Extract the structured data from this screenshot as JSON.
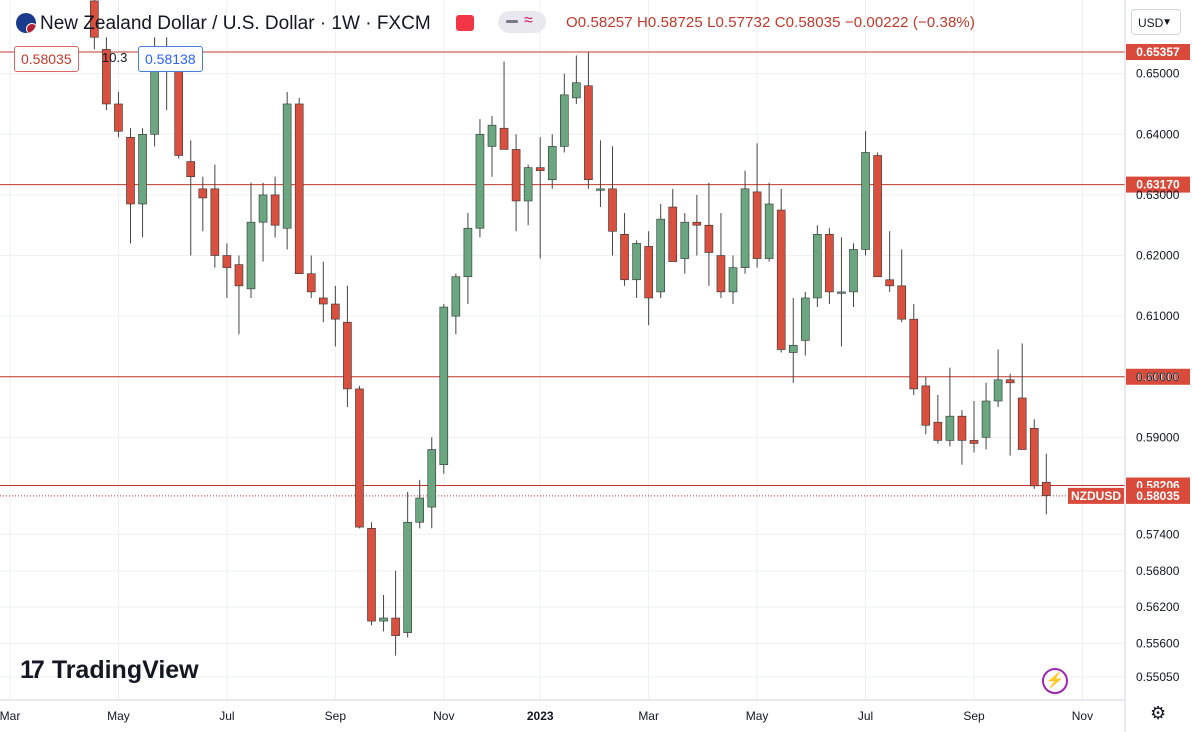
{
  "header": {
    "title": "New Zealand Dollar / U.S. Dollar · 1W · FXCM",
    "ohlc": "O0.58257 H0.58725 L0.57732 C0.58035 −0.00222 (−0.38%)",
    "sell_price": "0.58035",
    "spread": "10.3",
    "buy_price": "0.58138",
    "currency": "USD",
    "logo_text": "TradingView",
    "logo_mark": "17"
  },
  "colors": {
    "up": "#6aa680",
    "down": "#d9503e",
    "wick": "#444444",
    "hline": "#c0392b",
    "grid": "#eef0f3",
    "label_bg": "#d94a3a"
  },
  "icons": [
    "nz-flag-icon",
    "camera-icon",
    "compare-icon",
    "currency-chevron-icon",
    "lightning-icon",
    "settings-gear-icon",
    "tradingview-logo-icon"
  ],
  "chart_data": {
    "type": "candlestick",
    "symbol": "NZDUSD",
    "last_price": 0.58035,
    "ylim": [
      0.548,
      0.6605
    ],
    "y_ticks": [
      "0.65000",
      "0.64000",
      "0.63000",
      "0.62000",
      "0.61000",
      "0.60000",
      "0.59000",
      "0.57400",
      "0.56800",
      "0.56200",
      "0.55600",
      "0.55050"
    ],
    "x_ticks": [
      {
        "label": "Mar",
        "week": 0
      },
      {
        "label": "May",
        "week": 9
      },
      {
        "label": "Jul",
        "week": 18
      },
      {
        "label": "Sep",
        "week": 27
      },
      {
        "label": "Nov",
        "week": 36
      },
      {
        "label": "2023",
        "week": 44
      },
      {
        "label": "Mar",
        "week": 53
      },
      {
        "label": "May",
        "week": 62
      },
      {
        "label": "Jul",
        "week": 71
      },
      {
        "label": "Sep",
        "week": 80
      },
      {
        "label": "Nov",
        "week": 89
      }
    ],
    "horizontal_levels": [
      {
        "value": 0.65357,
        "label": "0.65357"
      },
      {
        "value": 0.6317,
        "label": "0.63170"
      },
      {
        "value": 0.6,
        "label": "0.60000"
      },
      {
        "value": 0.58206,
        "label": "0.58206"
      }
    ],
    "price_label": {
      "symbol": "NZDUSD",
      "value": "0.58035"
    },
    "candles": [
      {
        "week": 7,
        "o": 0.662,
        "h": 0.664,
        "l": 0.654,
        "c": 0.656
      },
      {
        "week": 8,
        "o": 0.654,
        "h": 0.656,
        "l": 0.644,
        "c": 0.645
      },
      {
        "week": 9,
        "o": 0.645,
        "h": 0.647,
        "l": 0.6395,
        "c": 0.6405
      },
      {
        "week": 10,
        "o": 0.6395,
        "h": 0.641,
        "l": 0.622,
        "c": 0.6285
      },
      {
        "week": 11,
        "o": 0.6285,
        "h": 0.641,
        "l": 0.623,
        "c": 0.64
      },
      {
        "week": 12,
        "o": 0.64,
        "h": 0.656,
        "l": 0.638,
        "c": 0.654
      },
      {
        "week": 13,
        "o": 0.654,
        "h": 0.656,
        "l": 0.644,
        "c": 0.652
      },
      {
        "week": 14,
        "o": 0.6515,
        "h": 0.652,
        "l": 0.636,
        "c": 0.6365
      },
      {
        "week": 15,
        "o": 0.6355,
        "h": 0.639,
        "l": 0.62,
        "c": 0.633
      },
      {
        "week": 16,
        "o": 0.631,
        "h": 0.633,
        "l": 0.624,
        "c": 0.6295
      },
      {
        "week": 17,
        "o": 0.631,
        "h": 0.635,
        "l": 0.618,
        "c": 0.62
      },
      {
        "week": 18,
        "o": 0.62,
        "h": 0.622,
        "l": 0.613,
        "c": 0.618
      },
      {
        "week": 19,
        "o": 0.6185,
        "h": 0.62,
        "l": 0.607,
        "c": 0.615
      },
      {
        "week": 20,
        "o": 0.6145,
        "h": 0.632,
        "l": 0.613,
        "c": 0.6255
      },
      {
        "week": 21,
        "o": 0.6255,
        "h": 0.632,
        "l": 0.619,
        "c": 0.63
      },
      {
        "week": 22,
        "o": 0.63,
        "h": 0.633,
        "l": 0.623,
        "c": 0.625
      },
      {
        "week": 23,
        "o": 0.6245,
        "h": 0.647,
        "l": 0.621,
        "c": 0.645
      },
      {
        "week": 24,
        "o": 0.645,
        "h": 0.646,
        "l": 0.617,
        "c": 0.617
      },
      {
        "week": 25,
        "o": 0.617,
        "h": 0.62,
        "l": 0.613,
        "c": 0.614
      },
      {
        "week": 26,
        "o": 0.613,
        "h": 0.619,
        "l": 0.609,
        "c": 0.612
      },
      {
        "week": 27,
        "o": 0.612,
        "h": 0.615,
        "l": 0.605,
        "c": 0.6095
      },
      {
        "week": 28,
        "o": 0.609,
        "h": 0.615,
        "l": 0.595,
        "c": 0.598
      },
      {
        "week": 29,
        "o": 0.598,
        "h": 0.5985,
        "l": 0.575,
        "c": 0.5752
      },
      {
        "week": 30,
        "o": 0.575,
        "h": 0.576,
        "l": 0.559,
        "c": 0.5597
      },
      {
        "week": 31,
        "o": 0.5597,
        "h": 0.564,
        "l": 0.558,
        "c": 0.5602
      },
      {
        "week": 32,
        "o": 0.5602,
        "h": 0.568,
        "l": 0.554,
        "c": 0.5573
      },
      {
        "week": 33,
        "o": 0.5578,
        "h": 0.581,
        "l": 0.557,
        "c": 0.576
      },
      {
        "week": 34,
        "o": 0.576,
        "h": 0.583,
        "l": 0.575,
        "c": 0.58
      },
      {
        "week": 35,
        "o": 0.5785,
        "h": 0.59,
        "l": 0.575,
        "c": 0.588
      },
      {
        "week": 36,
        "o": 0.5855,
        "h": 0.612,
        "l": 0.584,
        "c": 0.6115
      },
      {
        "week": 37,
        "o": 0.61,
        "h": 0.617,
        "l": 0.607,
        "c": 0.6165
      },
      {
        "week": 38,
        "o": 0.6165,
        "h": 0.627,
        "l": 0.612,
        "c": 0.6245
      },
      {
        "week": 39,
        "o": 0.6245,
        "h": 0.6425,
        "l": 0.623,
        "c": 0.64
      },
      {
        "week": 40,
        "o": 0.638,
        "h": 0.643,
        "l": 0.633,
        "c": 0.6415
      },
      {
        "week": 41,
        "o": 0.641,
        "h": 0.652,
        "l": 0.638,
        "c": 0.6375
      },
      {
        "week": 42,
        "o": 0.6375,
        "h": 0.64,
        "l": 0.624,
        "c": 0.629
      },
      {
        "week": 43,
        "o": 0.629,
        "h": 0.635,
        "l": 0.625,
        "c": 0.6345
      },
      {
        "week": 44,
        "o": 0.6345,
        "h": 0.6395,
        "l": 0.6195,
        "c": 0.634
      },
      {
        "week": 45,
        "o": 0.6325,
        "h": 0.64,
        "l": 0.631,
        "c": 0.638
      },
      {
        "week": 46,
        "o": 0.638,
        "h": 0.65,
        "l": 0.637,
        "c": 0.6465
      },
      {
        "week": 47,
        "o": 0.646,
        "h": 0.653,
        "l": 0.645,
        "c": 0.6485
      },
      {
        "week": 48,
        "o": 0.648,
        "h": 0.6535,
        "l": 0.631,
        "c": 0.6325
      },
      {
        "week": 49,
        "o": 0.631,
        "h": 0.639,
        "l": 0.628,
        "c": 0.631
      },
      {
        "week": 50,
        "o": 0.631,
        "h": 0.638,
        "l": 0.62,
        "c": 0.624
      },
      {
        "week": 51,
        "o": 0.6235,
        "h": 0.627,
        "l": 0.615,
        "c": 0.616
      },
      {
        "week": 52,
        "o": 0.616,
        "h": 0.6225,
        "l": 0.613,
        "c": 0.622
      },
      {
        "week": 53,
        "o": 0.6215,
        "h": 0.624,
        "l": 0.6085,
        "c": 0.613
      },
      {
        "week": 54,
        "o": 0.614,
        "h": 0.6285,
        "l": 0.613,
        "c": 0.626
      },
      {
        "week": 55,
        "o": 0.628,
        "h": 0.631,
        "l": 0.619,
        "c": 0.619
      },
      {
        "week": 56,
        "o": 0.6195,
        "h": 0.627,
        "l": 0.617,
        "c": 0.6255
      },
      {
        "week": 57,
        "o": 0.6255,
        "h": 0.63,
        "l": 0.62,
        "c": 0.625
      },
      {
        "week": 58,
        "o": 0.625,
        "h": 0.632,
        "l": 0.615,
        "c": 0.6205
      },
      {
        "week": 59,
        "o": 0.62,
        "h": 0.627,
        "l": 0.613,
        "c": 0.614
      },
      {
        "week": 60,
        "o": 0.614,
        "h": 0.62,
        "l": 0.612,
        "c": 0.618
      },
      {
        "week": 61,
        "o": 0.618,
        "h": 0.634,
        "l": 0.617,
        "c": 0.631
      },
      {
        "week": 62,
        "o": 0.6305,
        "h": 0.6385,
        "l": 0.618,
        "c": 0.6195
      },
      {
        "week": 63,
        "o": 0.6195,
        "h": 0.632,
        "l": 0.619,
        "c": 0.6285
      },
      {
        "week": 64,
        "o": 0.6275,
        "h": 0.631,
        "l": 0.604,
        "c": 0.6045
      },
      {
        "week": 65,
        "o": 0.604,
        "h": 0.613,
        "l": 0.599,
        "c": 0.6052
      },
      {
        "week": 66,
        "o": 0.606,
        "h": 0.614,
        "l": 0.6035,
        "c": 0.613
      },
      {
        "week": 67,
        "o": 0.613,
        "h": 0.625,
        "l": 0.6115,
        "c": 0.6235
      },
      {
        "week": 68,
        "o": 0.6235,
        "h": 0.6245,
        "l": 0.612,
        "c": 0.614
      },
      {
        "week": 69,
        "o": 0.614,
        "h": 0.623,
        "l": 0.605,
        "c": 0.614
      },
      {
        "week": 70,
        "o": 0.614,
        "h": 0.622,
        "l": 0.6115,
        "c": 0.621
      },
      {
        "week": 71,
        "o": 0.621,
        "h": 0.6405,
        "l": 0.62,
        "c": 0.637
      },
      {
        "week": 72,
        "o": 0.6365,
        "h": 0.637,
        "l": 0.6165,
        "c": 0.6165
      },
      {
        "week": 73,
        "o": 0.616,
        "h": 0.624,
        "l": 0.614,
        "c": 0.615
      },
      {
        "week": 74,
        "o": 0.615,
        "h": 0.621,
        "l": 0.609,
        "c": 0.6095
      },
      {
        "week": 75,
        "o": 0.6095,
        "h": 0.612,
        "l": 0.597,
        "c": 0.598
      },
      {
        "week": 76,
        "o": 0.5985,
        "h": 0.6,
        "l": 0.5905,
        "c": 0.592
      },
      {
        "week": 77,
        "o": 0.5925,
        "h": 0.597,
        "l": 0.589,
        "c": 0.5895
      },
      {
        "week": 78,
        "o": 0.5895,
        "h": 0.6015,
        "l": 0.5885,
        "c": 0.5935
      },
      {
        "week": 79,
        "o": 0.5935,
        "h": 0.5945,
        "l": 0.5855,
        "c": 0.5895
      },
      {
        "week": 80,
        "o": 0.5895,
        "h": 0.596,
        "l": 0.5875,
        "c": 0.589
      },
      {
        "week": 81,
        "o": 0.59,
        "h": 0.599,
        "l": 0.588,
        "c": 0.596
      },
      {
        "week": 82,
        "o": 0.596,
        "h": 0.6045,
        "l": 0.595,
        "c": 0.5995
      },
      {
        "week": 83,
        "o": 0.5995,
        "h": 0.6005,
        "l": 0.587,
        "c": 0.599
      },
      {
        "week": 84,
        "o": 0.5965,
        "h": 0.6055,
        "l": 0.588,
        "c": 0.588
      },
      {
        "week": 85,
        "o": 0.5915,
        "h": 0.593,
        "l": 0.5815,
        "c": 0.582
      },
      {
        "week": 86,
        "o": 0.5826,
        "h": 0.5873,
        "l": 0.5773,
        "c": 0.5804
      }
    ]
  }
}
